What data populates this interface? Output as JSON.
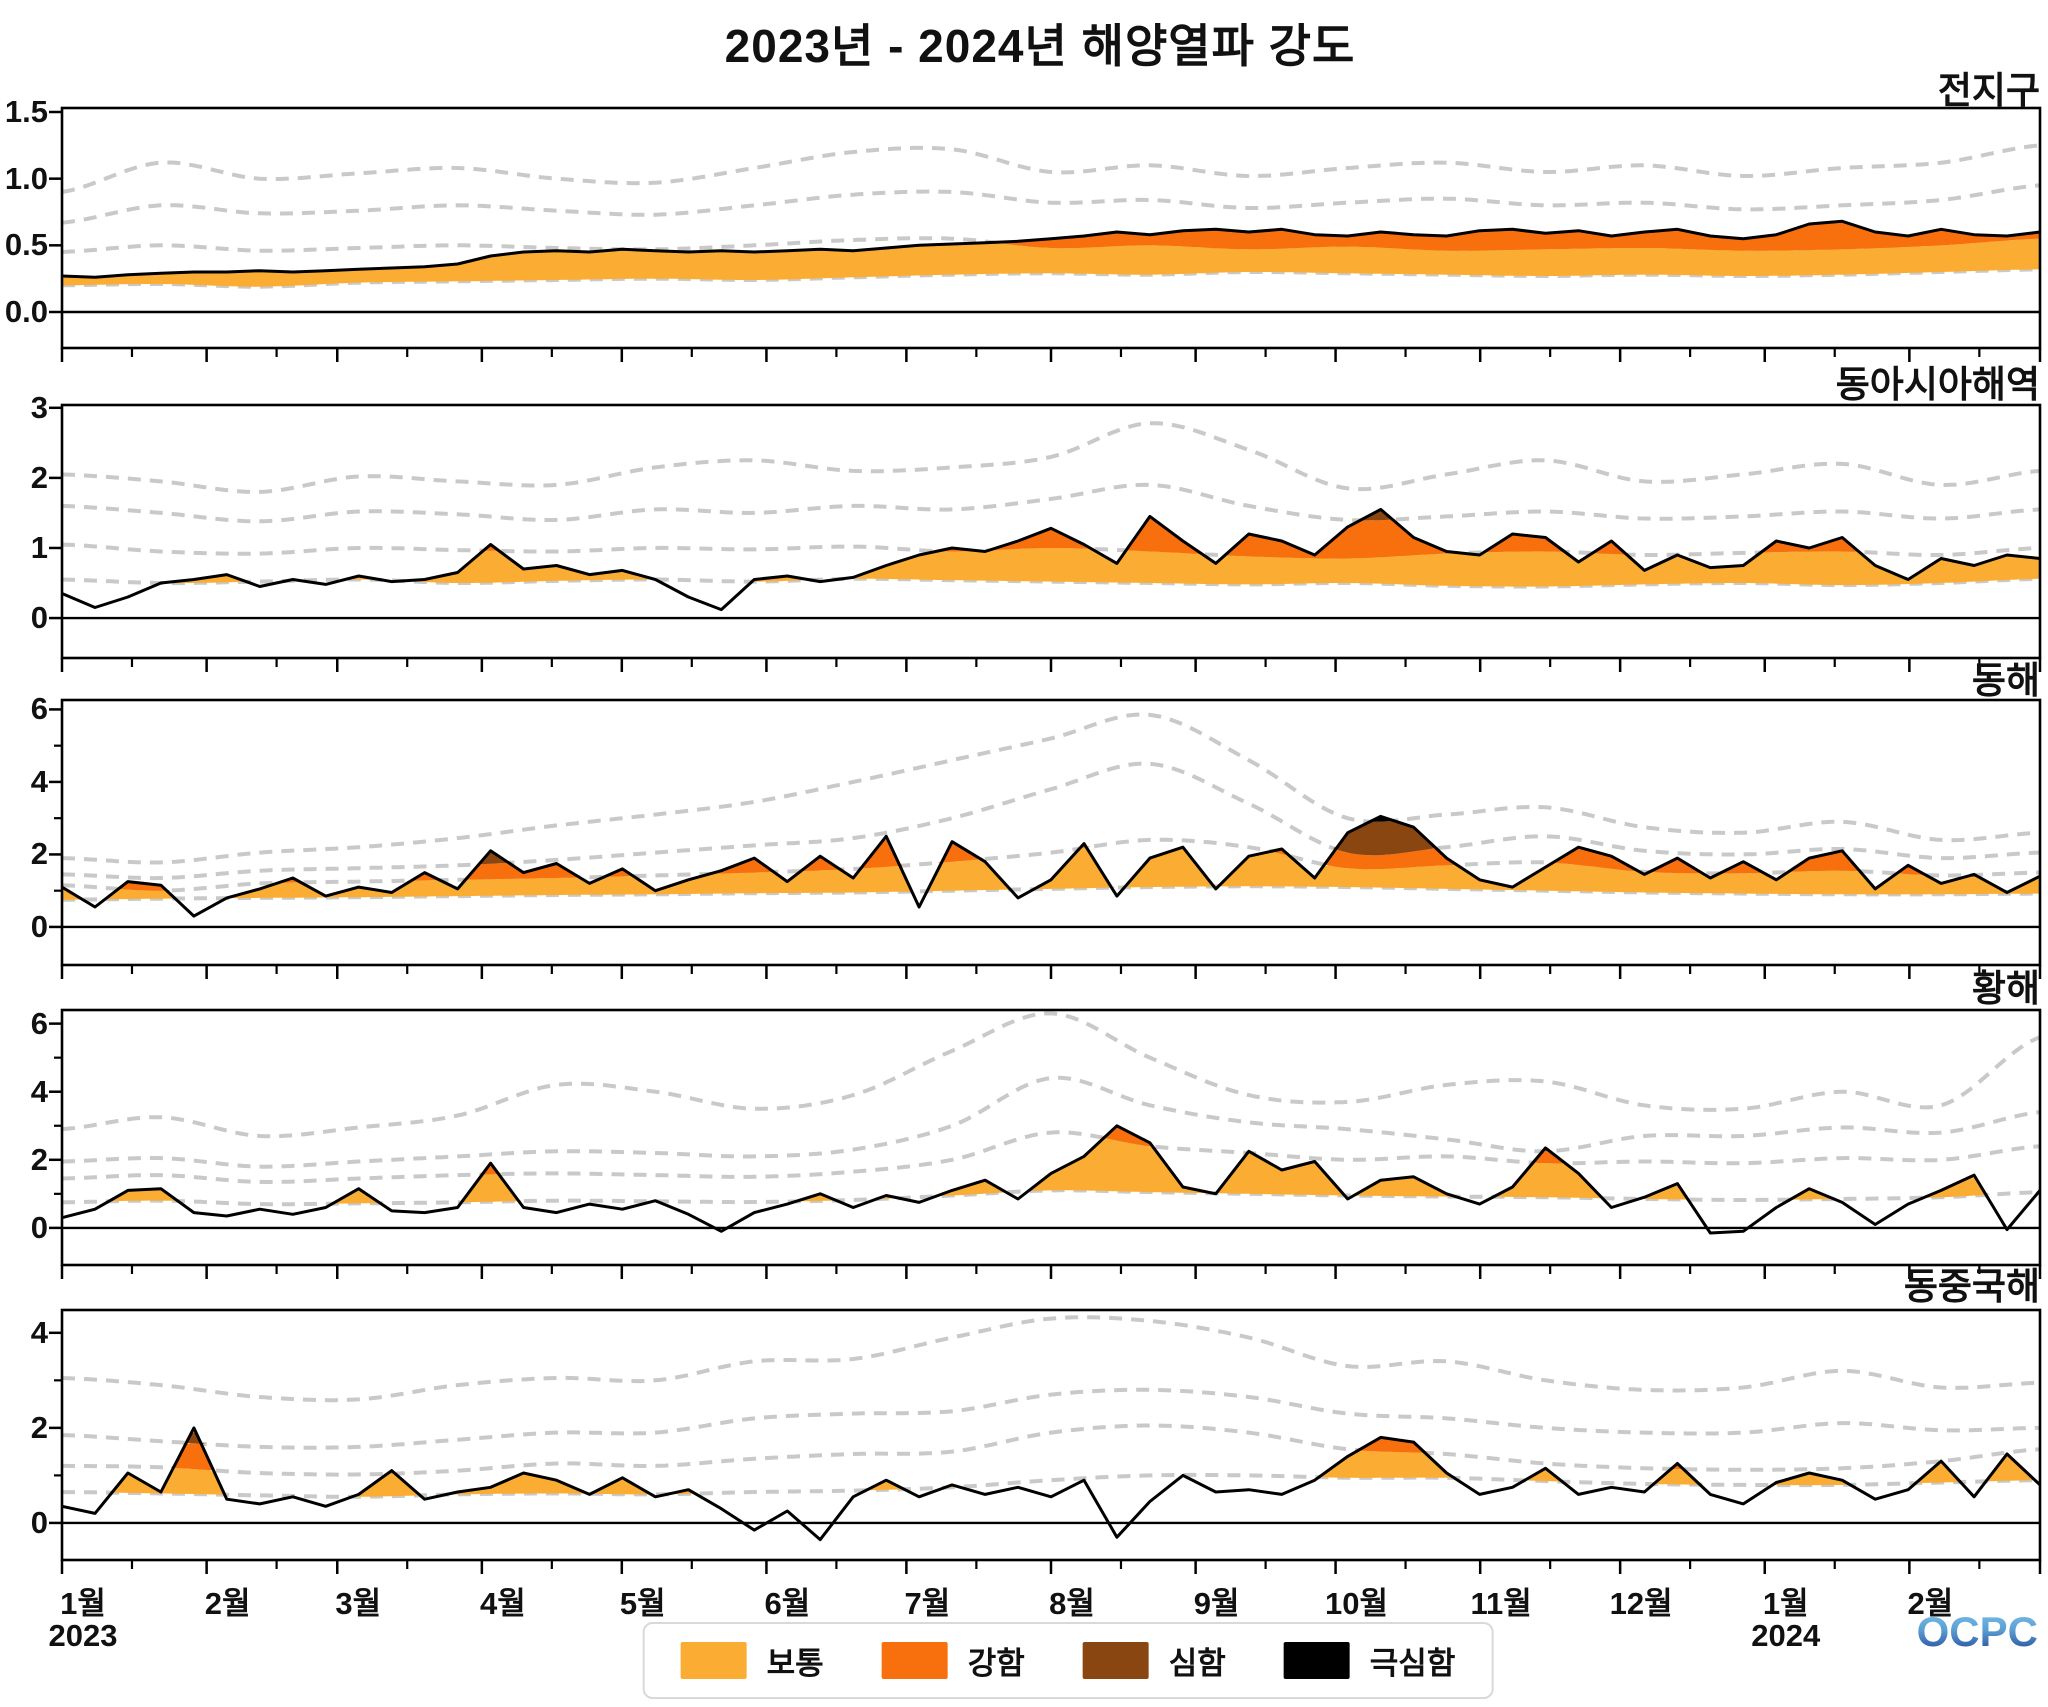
{
  "title": "2023년 - 2024년 해양열파 강도",
  "branding": {
    "logo_text": "OCPC"
  },
  "legend": {
    "items": [
      {
        "label": "보통",
        "color": "#FBAD33"
      },
      {
        "label": "강함",
        "color": "#F86F0D"
      },
      {
        "label": "심함",
        "color": "#8A4611"
      },
      {
        "label": "극심함",
        "color": "#000000"
      }
    ]
  },
  "colors": {
    "threshold_dash": "#C9C9C9",
    "line": "#000000",
    "axis": "#111111"
  },
  "xaxis": {
    "month_labels": [
      "1월",
      "2월",
      "3월",
      "4월",
      "5월",
      "6월",
      "7월",
      "8월",
      "9월",
      "10월",
      "11월",
      "12월",
      "1월",
      "2월"
    ],
    "year_labels": [
      {
        "month_index": 0,
        "text": "2023"
      },
      {
        "month_index": 12,
        "text": "2024"
      }
    ],
    "month_start_days": [
      0,
      31,
      59,
      90,
      120,
      151,
      181,
      212,
      243,
      273,
      304,
      334,
      365,
      396
    ],
    "mid_month_days": [
      15,
      46,
      74,
      105,
      135,
      166,
      196,
      227,
      258,
      288,
      319,
      349,
      380,
      411
    ],
    "total_days": 424
  },
  "chart_data": {
    "type": "area",
    "description": "Marine heatwave intensity (black line) with four climatological category thresholds (gray dashed). Fill color = category band: moderate(보통), strong(강함), severe(심함), extreme(극심함). Weekly samples Jan 2023 - Feb 2024; thresholds anchored every 3 weeks.",
    "line_step_weeks": 1,
    "threshold_step_weeks": 3,
    "panels": [
      {
        "title": "전지구",
        "ylim": [
          -0.27,
          1.53
        ],
        "yticks": [
          0.0,
          0.5,
          1.0,
          1.5
        ],
        "ytick_labels": [
          "0.0",
          "0.5",
          "1.0",
          "1.5"
        ],
        "yminor": [],
        "line": [
          0.27,
          0.26,
          0.28,
          0.29,
          0.3,
          0.3,
          0.31,
          0.3,
          0.31,
          0.32,
          0.33,
          0.34,
          0.36,
          0.42,
          0.45,
          0.46,
          0.45,
          0.47,
          0.46,
          0.45,
          0.46,
          0.45,
          0.46,
          0.47,
          0.46,
          0.48,
          0.5,
          0.51,
          0.52,
          0.53,
          0.55,
          0.57,
          0.6,
          0.58,
          0.61,
          0.62,
          0.6,
          0.62,
          0.58,
          0.57,
          0.6,
          0.58,
          0.57,
          0.61,
          0.62,
          0.59,
          0.61,
          0.57,
          0.6,
          0.62,
          0.57,
          0.55,
          0.58,
          0.66,
          0.68,
          0.6,
          0.57,
          0.62,
          0.58,
          0.57,
          0.6
        ],
        "thresholds": {
          "moderate": [
            0.2,
            0.21,
            0.19,
            0.22,
            0.23,
            0.24,
            0.25,
            0.24,
            0.26,
            0.28,
            0.29,
            0.28,
            0.3,
            0.29,
            0.28,
            0.27,
            0.28,
            0.27,
            0.28,
            0.3,
            0.32
          ],
          "strong": [
            0.45,
            0.5,
            0.46,
            0.48,
            0.5,
            0.48,
            0.47,
            0.5,
            0.54,
            0.55,
            0.48,
            0.5,
            0.47,
            0.49,
            0.46,
            0.47,
            0.48,
            0.46,
            0.47,
            0.5,
            0.55
          ],
          "severe": [
            0.67,
            0.8,
            0.74,
            0.76,
            0.8,
            0.76,
            0.73,
            0.8,
            0.88,
            0.9,
            0.82,
            0.84,
            0.78,
            0.82,
            0.85,
            0.8,
            0.82,
            0.77,
            0.8,
            0.84,
            0.95
          ],
          "extreme": [
            0.9,
            1.12,
            1.0,
            1.04,
            1.08,
            1.0,
            0.97,
            1.08,
            1.2,
            1.22,
            1.05,
            1.1,
            1.02,
            1.08,
            1.12,
            1.05,
            1.1,
            1.02,
            1.08,
            1.12,
            1.25
          ]
        }
      },
      {
        "title": "동아시아해역",
        "ylim": [
          -0.57,
          3.04
        ],
        "yticks": [
          0,
          1,
          2,
          3
        ],
        "ytick_labels": [
          "0",
          "1",
          "2",
          "3"
        ],
        "yminor": [],
        "line": [
          0.35,
          0.15,
          0.3,
          0.5,
          0.55,
          0.62,
          0.45,
          0.55,
          0.48,
          0.6,
          0.52,
          0.55,
          0.65,
          1.05,
          0.7,
          0.75,
          0.62,
          0.68,
          0.55,
          0.3,
          0.12,
          0.55,
          0.6,
          0.52,
          0.58,
          0.75,
          0.9,
          1.0,
          0.95,
          1.1,
          1.28,
          1.05,
          0.78,
          1.45,
          1.1,
          0.78,
          1.2,
          1.1,
          0.9,
          1.3,
          1.55,
          1.15,
          0.95,
          0.9,
          1.2,
          1.15,
          0.8,
          1.1,
          0.68,
          0.9,
          0.72,
          0.75,
          1.1,
          1.0,
          1.15,
          0.75,
          0.55,
          0.85,
          0.75,
          0.9,
          0.85
        ],
        "thresholds": {
          "moderate": [
            0.55,
            0.5,
            0.52,
            0.55,
            0.5,
            0.53,
            0.55,
            0.52,
            0.56,
            0.54,
            0.52,
            0.5,
            0.48,
            0.5,
            0.46,
            0.45,
            0.48,
            0.5,
            0.47,
            0.5,
            0.56
          ],
          "strong": [
            1.05,
            0.95,
            0.92,
            1.0,
            0.97,
            0.95,
            1.0,
            0.98,
            1.02,
            0.95,
            1.0,
            0.95,
            0.88,
            0.85,
            0.92,
            0.95,
            0.9,
            0.93,
            0.95,
            0.9,
            1.0
          ],
          "severe": [
            1.6,
            1.5,
            1.38,
            1.52,
            1.48,
            1.4,
            1.55,
            1.5,
            1.6,
            1.55,
            1.7,
            1.9,
            1.6,
            1.4,
            1.45,
            1.52,
            1.42,
            1.45,
            1.52,
            1.42,
            1.55
          ],
          "extreme": [
            2.05,
            1.95,
            1.8,
            2.02,
            1.95,
            1.9,
            2.15,
            2.25,
            2.1,
            2.15,
            2.3,
            2.78,
            2.4,
            1.85,
            2.05,
            2.25,
            1.95,
            2.05,
            2.2,
            1.9,
            2.1
          ]
        }
      },
      {
        "title": "동해",
        "ylim": [
          -1.05,
          6.26
        ],
        "yticks": [
          0,
          2,
          4,
          6
        ],
        "ytick_labels": [
          "0",
          "2",
          "4",
          "6"
        ],
        "yminor": [
          1,
          3,
          5
        ],
        "line": [
          1.1,
          0.55,
          1.25,
          1.15,
          0.3,
          0.8,
          1.05,
          1.35,
          0.85,
          1.1,
          0.95,
          1.5,
          1.05,
          2.1,
          1.5,
          1.75,
          1.2,
          1.6,
          1.0,
          1.3,
          1.55,
          1.9,
          1.25,
          1.95,
          1.35,
          2.5,
          0.55,
          2.35,
          1.8,
          0.8,
          1.3,
          2.3,
          0.85,
          1.9,
          2.2,
          1.05,
          1.95,
          2.15,
          1.35,
          2.6,
          3.05,
          2.75,
          1.9,
          1.3,
          1.1,
          1.65,
          2.2,
          1.95,
          1.45,
          1.9,
          1.35,
          1.8,
          1.3,
          1.9,
          2.1,
          1.05,
          1.7,
          1.2,
          1.45,
          0.95,
          1.4
        ],
        "thresholds": {
          "moderate": [
            0.75,
            0.78,
            0.8,
            0.82,
            0.85,
            0.88,
            0.9,
            0.93,
            0.95,
            1.0,
            1.05,
            1.1,
            1.12,
            1.1,
            1.05,
            1.0,
            0.95,
            0.92,
            0.9,
            0.9,
            0.92
          ],
          "strong": [
            1.15,
            1.0,
            1.2,
            1.25,
            1.3,
            1.35,
            1.42,
            1.5,
            1.6,
            1.8,
            2.05,
            2.4,
            2.2,
            1.62,
            1.7,
            1.78,
            1.52,
            1.48,
            1.55,
            1.42,
            1.5
          ],
          "severe": [
            1.45,
            1.35,
            1.55,
            1.62,
            1.7,
            1.85,
            2.05,
            2.25,
            2.45,
            3.0,
            3.8,
            4.5,
            3.4,
            2.05,
            2.2,
            2.5,
            2.1,
            2.0,
            2.15,
            1.9,
            2.05
          ],
          "extreme": [
            1.9,
            1.78,
            2.05,
            2.2,
            2.45,
            2.8,
            3.1,
            3.45,
            4.0,
            4.6,
            5.2,
            5.85,
            4.6,
            3.0,
            3.1,
            3.3,
            2.75,
            2.6,
            2.9,
            2.4,
            2.6
          ]
        }
      },
      {
        "title": "황해",
        "ylim": [
          -1.09,
          6.4
        ],
        "yticks": [
          0,
          2,
          4,
          6
        ],
        "ytick_labels": [
          "0",
          "2",
          "4",
          "6"
        ],
        "yminor": [
          1,
          3,
          5
        ],
        "line": [
          0.3,
          0.55,
          1.1,
          1.15,
          0.45,
          0.35,
          0.55,
          0.4,
          0.6,
          1.15,
          0.5,
          0.45,
          0.6,
          1.9,
          0.6,
          0.45,
          0.7,
          0.55,
          0.8,
          0.4,
          -0.1,
          0.45,
          0.7,
          1.0,
          0.6,
          0.95,
          0.75,
          1.1,
          1.4,
          0.85,
          1.6,
          2.1,
          3.0,
          2.5,
          1.2,
          1.0,
          2.25,
          1.7,
          1.95,
          0.85,
          1.4,
          1.5,
          1.0,
          0.7,
          1.2,
          2.35,
          1.6,
          0.6,
          0.9,
          1.3,
          -0.15,
          -0.1,
          0.6,
          1.15,
          0.75,
          0.1,
          0.7,
          1.1,
          1.55,
          -0.05,
          1.1
        ],
        "thresholds": {
          "moderate": [
            0.75,
            0.8,
            0.7,
            0.72,
            0.75,
            0.8,
            0.78,
            0.76,
            0.82,
            0.95,
            1.1,
            1.05,
            1.0,
            0.95,
            0.92,
            0.9,
            0.85,
            0.82,
            0.85,
            0.9,
            1.05
          ],
          "strong": [
            1.45,
            1.55,
            1.35,
            1.45,
            1.55,
            1.6,
            1.55,
            1.5,
            1.65,
            2.0,
            2.8,
            2.4,
            2.2,
            2.0,
            2.1,
            1.9,
            1.95,
            1.9,
            2.05,
            2.0,
            2.4
          ],
          "severe": [
            1.95,
            2.05,
            1.8,
            1.95,
            2.1,
            2.25,
            2.2,
            2.1,
            2.3,
            3.0,
            4.4,
            3.6,
            3.1,
            2.9,
            2.6,
            2.25,
            2.7,
            2.7,
            2.95,
            2.8,
            3.4
          ],
          "extreme": [
            2.9,
            3.25,
            2.7,
            2.95,
            3.3,
            4.2,
            4.0,
            3.5,
            3.9,
            5.2,
            6.3,
            5.0,
            3.9,
            3.7,
            4.2,
            4.3,
            3.6,
            3.5,
            4.0,
            3.6,
            5.6
          ]
        }
      },
      {
        "title": "동중국해",
        "ylim": [
          -0.78,
          4.48
        ],
        "yticks": [
          0,
          2,
          4
        ],
        "ytick_labels": [
          "0",
          "2",
          "4"
        ],
        "yminor": [
          1,
          3
        ],
        "line": [
          0.35,
          0.2,
          1.05,
          0.65,
          2.0,
          0.5,
          0.4,
          0.55,
          0.35,
          0.6,
          1.1,
          0.5,
          0.65,
          0.75,
          1.05,
          0.9,
          0.6,
          0.95,
          0.55,
          0.7,
          0.3,
          -0.15,
          0.25,
          -0.35,
          0.55,
          0.9,
          0.55,
          0.8,
          0.6,
          0.75,
          0.55,
          0.9,
          -0.3,
          0.45,
          1.0,
          0.65,
          0.7,
          0.6,
          0.9,
          1.4,
          1.8,
          1.7,
          1.05,
          0.6,
          0.75,
          1.15,
          0.6,
          0.75,
          0.65,
          1.25,
          0.6,
          0.4,
          0.85,
          1.05,
          0.9,
          0.5,
          0.7,
          1.3,
          0.55,
          1.45,
          0.8
        ],
        "thresholds": {
          "moderate": [
            0.65,
            0.62,
            0.58,
            0.55,
            0.6,
            0.62,
            0.6,
            0.65,
            0.68,
            0.75,
            0.9,
            1.0,
            1.0,
            0.95,
            0.95,
            0.88,
            0.82,
            0.8,
            0.8,
            0.85,
            0.9
          ],
          "strong": [
            1.2,
            1.17,
            1.05,
            1.02,
            1.1,
            1.25,
            1.2,
            1.35,
            1.45,
            1.5,
            1.9,
            2.05,
            1.9,
            1.55,
            1.45,
            1.25,
            1.15,
            1.12,
            1.15,
            1.3,
            1.55
          ],
          "severe": [
            1.85,
            1.72,
            1.6,
            1.6,
            1.75,
            1.9,
            1.9,
            2.2,
            2.3,
            2.35,
            2.7,
            2.8,
            2.65,
            2.3,
            2.2,
            2.0,
            1.9,
            1.9,
            2.1,
            1.95,
            2.0
          ],
          "extreme": [
            3.05,
            2.9,
            2.65,
            2.6,
            2.9,
            3.05,
            3.0,
            3.4,
            3.45,
            3.9,
            4.3,
            4.25,
            3.9,
            3.3,
            3.4,
            3.0,
            2.8,
            2.85,
            3.2,
            2.85,
            2.95
          ]
        }
      }
    ]
  }
}
